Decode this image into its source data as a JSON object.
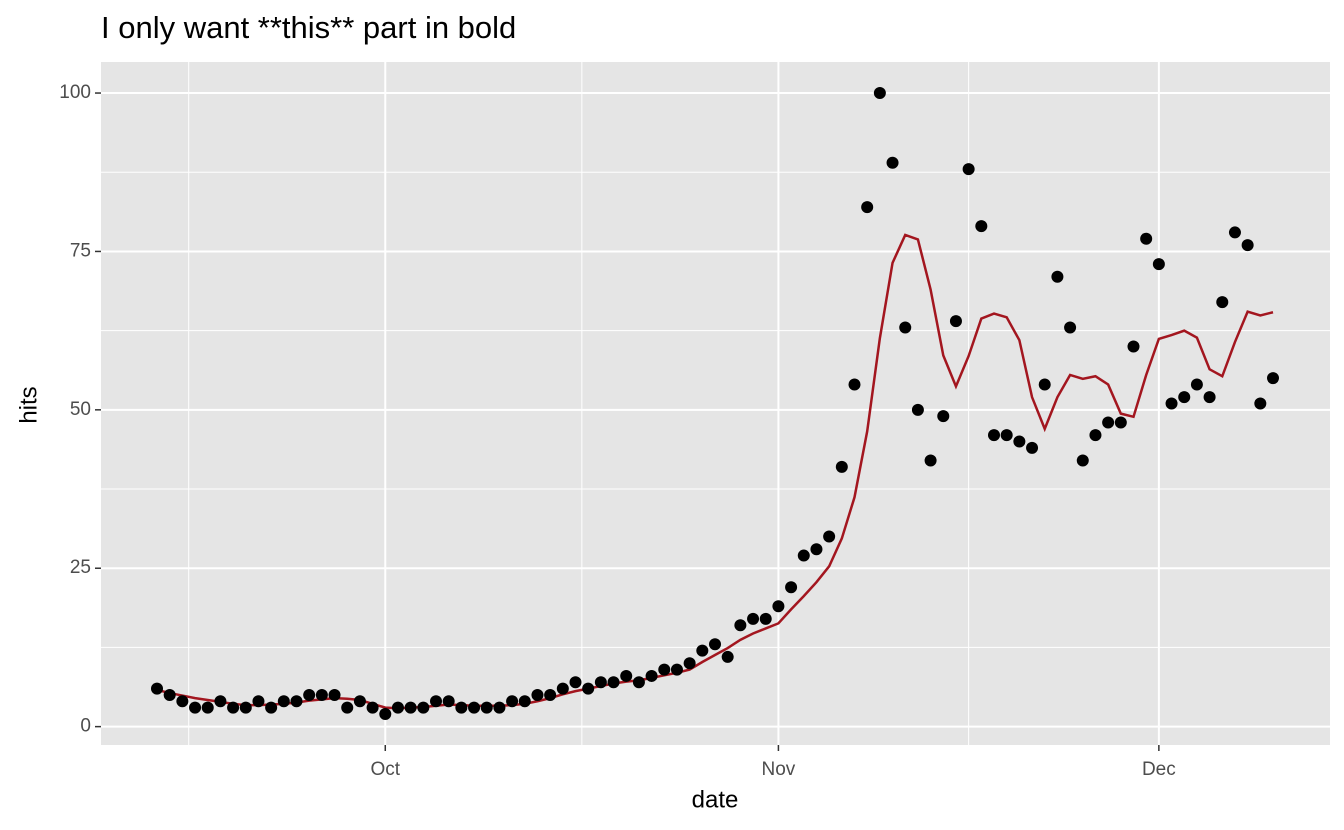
{
  "chart_data": {
    "type": "line",
    "title": "I only want **this** part in bold",
    "x_label": "date",
    "y_label": "hits",
    "categories": [
      null,
      null,
      null,
      null,
      null,
      null,
      null,
      null,
      null,
      null,
      null,
      null,
      null,
      null,
      null,
      null,
      null,
      null,
      "Oct",
      null,
      null,
      null,
      null,
      null,
      null,
      null,
      null,
      null,
      null,
      null,
      null,
      null,
      null,
      null,
      null,
      null,
      null,
      null,
      null,
      null,
      null,
      null,
      null,
      null,
      null,
      null,
      null,
      null,
      null,
      "Nov",
      null,
      null,
      null,
      null,
      null,
      null,
      null,
      null,
      null,
      null,
      null,
      null,
      null,
      null,
      null,
      null,
      null,
      null,
      null,
      null,
      null,
      null,
      null,
      null,
      null,
      null,
      null,
      null,
      null,
      "Dec",
      null,
      null,
      null,
      null,
      null,
      null,
      null,
      null,
      null
    ],
    "series": [
      {
        "type": "scatter",
        "color": "#000000",
        "values": [
          6,
          5,
          4,
          3,
          3,
          4,
          3,
          3,
          4,
          3,
          4,
          4,
          5,
          5,
          5,
          3,
          4,
          3,
          2,
          3,
          3,
          3,
          4,
          4,
          3,
          3,
          3,
          3,
          4,
          4,
          5,
          5,
          6,
          7,
          6,
          7,
          7,
          8,
          7,
          8,
          9,
          9,
          10,
          12,
          13,
          11,
          16,
          17,
          17,
          19,
          22,
          27,
          28,
          30,
          41,
          54,
          82,
          100,
          89,
          63,
          50,
          42,
          49,
          64,
          88,
          79,
          46,
          46,
          45,
          44,
          54,
          71,
          63,
          42,
          46,
          48,
          48,
          60,
          77,
          73,
          51,
          52,
          54,
          52,
          67,
          78,
          76,
          51,
          55
        ]
      },
      {
        "type": "line",
        "color": "#a3161f",
        "values": [
          5.8,
          5.3,
          4.9,
          4.5,
          4.2,
          3.9,
          3.6,
          3.4,
          3.4,
          3.5,
          3.6,
          3.8,
          4.1,
          4.3,
          4.5,
          4.4,
          4.2,
          3.6,
          3.0,
          2.9,
          3.0,
          3.1,
          3.3,
          3.5,
          3.4,
          3.3,
          3.3,
          3.3,
          3.4,
          3.6,
          4.0,
          4.5,
          5.1,
          5.6,
          6.0,
          6.4,
          6.8,
          7.1,
          7.3,
          7.7,
          8.1,
          8.5,
          9.0,
          10.2,
          11.3,
          12.4,
          13.7,
          14.7,
          15.5,
          16.3,
          18.5,
          20.6,
          22.8,
          25.3,
          29.7,
          36.2,
          46.6,
          61.3,
          73.2,
          77.6,
          76.9,
          69.0,
          58.6,
          53.7,
          58.5,
          64.4,
          65.2,
          64.6,
          61.0,
          52.0,
          47.0,
          52.0,
          55.5,
          54.9,
          55.3,
          54.0,
          49.4,
          48.9,
          55.5,
          61.2,
          61.8,
          62.5,
          61.4,
          56.4,
          55.3,
          60.7,
          65.5,
          64.9,
          65.4
        ]
      }
    ],
    "ylim": [
      -2.9,
      104.9
    ],
    "yticks": [
      0,
      25,
      50,
      75,
      100
    ],
    "grid": true,
    "panel_color": "#e5e5e5"
  }
}
